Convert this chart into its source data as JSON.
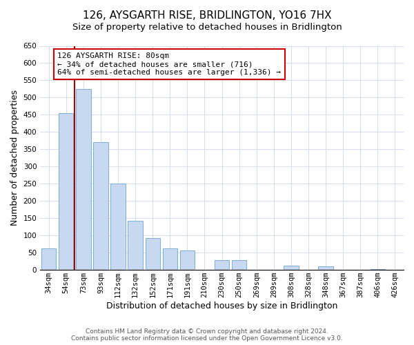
{
  "title": "126, AYSGARTH RISE, BRIDLINGTON, YO16 7HX",
  "subtitle": "Size of property relative to detached houses in Bridlington",
  "xlabel": "Distribution of detached houses by size in Bridlington",
  "ylabel": "Number of detached properties",
  "bar_labels": [
    "34sqm",
    "54sqm",
    "73sqm",
    "93sqm",
    "112sqm",
    "132sqm",
    "152sqm",
    "171sqm",
    "191sqm",
    "210sqm",
    "230sqm",
    "250sqm",
    "269sqm",
    "289sqm",
    "308sqm",
    "328sqm",
    "348sqm",
    "367sqm",
    "387sqm",
    "406sqm",
    "426sqm"
  ],
  "bar_values": [
    63,
    455,
    525,
    370,
    250,
    143,
    93,
    62,
    57,
    0,
    28,
    28,
    0,
    0,
    12,
    0,
    10,
    0,
    0,
    3,
    0
  ],
  "bar_color": "#c6d9f0",
  "bar_edge_color": "#7bafd4",
  "red_line_index": 2,
  "red_line_color": "#aa0000",
  "annotation_line1": "126 AYSGARTH RISE: 80sqm",
  "annotation_line2": "← 34% of detached houses are smaller (716)",
  "annotation_line3": "64% of semi-detached houses are larger (1,336) →",
  "annotation_box_color": "#ffffff",
  "annotation_box_edge": "#cc0000",
  "ylim": [
    0,
    650
  ],
  "yticks": [
    0,
    50,
    100,
    150,
    200,
    250,
    300,
    350,
    400,
    450,
    500,
    550,
    600,
    650
  ],
  "grid_color": "#d0d8e8",
  "footer": "Contains HM Land Registry data © Crown copyright and database right 2024.\nContains public sector information licensed under the Open Government Licence v3.0.",
  "title_fontsize": 11,
  "subtitle_fontsize": 9.5,
  "xlabel_fontsize": 9,
  "ylabel_fontsize": 9,
  "tick_fontsize": 7.5,
  "footer_fontsize": 6.5
}
